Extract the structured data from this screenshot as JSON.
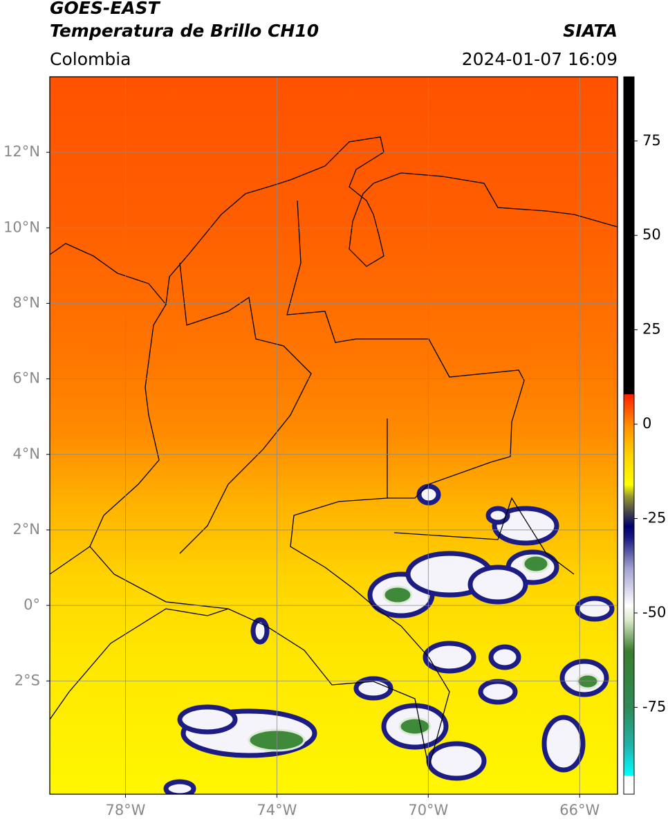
{
  "header": {
    "title": "GOES-EAST",
    "subtitle": "Temperatura de Brillo CH10",
    "region": "Colombia",
    "source": "SIATA",
    "timestamp": "2024-01-07 16:09"
  },
  "map": {
    "xlim": [
      -80,
      -65
    ],
    "ylim": [
      -5,
      14
    ],
    "grid": true,
    "xticks": [
      {
        "value": -78,
        "label": "78°W"
      },
      {
        "value": -74,
        "label": "74°W"
      },
      {
        "value": -70,
        "label": "70°W"
      },
      {
        "value": -66,
        "label": "66°W"
      }
    ],
    "yticks": [
      {
        "value": 12,
        "label": "12°N"
      },
      {
        "value": 10,
        "label": "10°N"
      },
      {
        "value": 8,
        "label": "8°N"
      },
      {
        "value": 6,
        "label": "6°N"
      },
      {
        "value": 4,
        "label": "4°N"
      },
      {
        "value": 2,
        "label": "2°N"
      },
      {
        "value": 0,
        "label": "0°"
      },
      {
        "value": -2,
        "label": "2°S"
      }
    ]
  },
  "colorbar": {
    "lim": [
      -98,
      92
    ],
    "ticks": [
      75,
      50,
      25,
      0,
      -25,
      -50,
      -75
    ],
    "stops": [
      {
        "value": -98,
        "color": "#ffffff"
      },
      {
        "value": -93,
        "color": "#ffffff"
      },
      {
        "value": -93,
        "color": "#00ffff"
      },
      {
        "value": -85,
        "color": "#20b2aa"
      },
      {
        "value": -75,
        "color": "#2e8b57"
      },
      {
        "value": -60,
        "color": "#3a7d2c"
      },
      {
        "value": -52,
        "color": "#d8e8c8"
      },
      {
        "value": -48,
        "color": "#ffffff"
      },
      {
        "value": -38,
        "color": "#a0a0d0"
      },
      {
        "value": -30,
        "color": "#1a1a80"
      },
      {
        "value": -27,
        "color": "#00006e"
      },
      {
        "value": -23,
        "color": "#4a4a4a"
      },
      {
        "value": -19,
        "color": "#9a9a30"
      },
      {
        "value": -16,
        "color": "#ffff00"
      },
      {
        "value": -8,
        "color": "#ffd200"
      },
      {
        "value": 0,
        "color": "#ff8c00"
      },
      {
        "value": 8,
        "color": "#ff2000"
      },
      {
        "value": 8,
        "color": "#000000"
      },
      {
        "value": 92,
        "color": "#000000"
      }
    ]
  }
}
